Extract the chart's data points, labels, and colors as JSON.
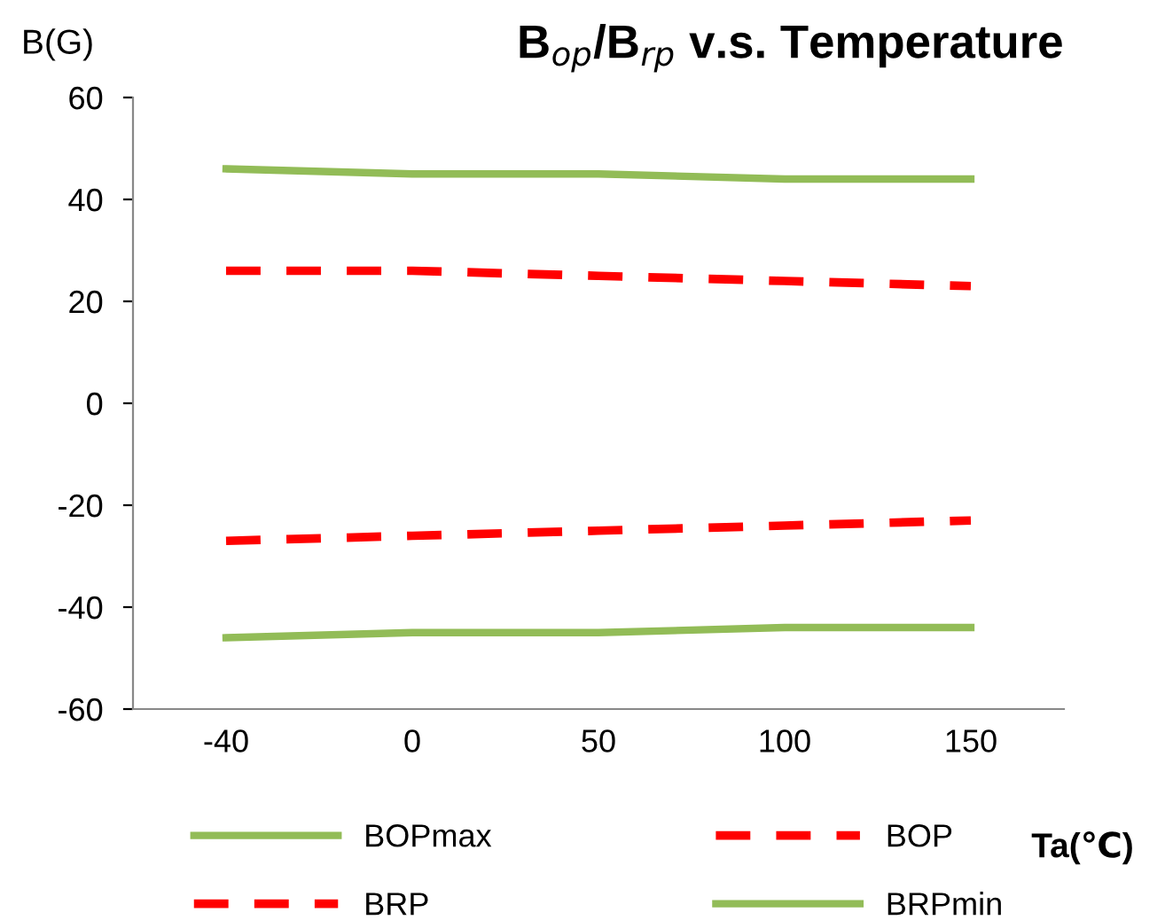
{
  "chart_data": {
    "type": "line",
    "title": "B$_{op}$/B$_{rp}$ v.s. Temperature",
    "ylabel": "B(G)",
    "xlabel": "Ta(℃)",
    "categories": [
      "-40",
      "0",
      "50",
      "100",
      "150"
    ],
    "series": [
      {
        "name": "BOPmax",
        "color": "#92bc57",
        "values": [
          46,
          45,
          45,
          44,
          44
        ],
        "line_style": "solid"
      },
      {
        "name": "BOP",
        "color": "#ff0000",
        "values": [
          26,
          26,
          25,
          24,
          23
        ],
        "line_style": "dashed"
      },
      {
        "name": "BRP",
        "color": "#ff0000",
        "values": [
          -27,
          -26,
          -25,
          -24,
          -23
        ],
        "line_style": "dashed"
      },
      {
        "name": "BRPmin",
        "color": "#92bc57",
        "values": [
          -46,
          -45,
          -45,
          -44,
          -44
        ],
        "line_style": "solid"
      }
    ],
    "ylim": [
      -60,
      60
    ],
    "yticks": [
      -60,
      -40,
      -20,
      0,
      20,
      40,
      60
    ],
    "grid": false,
    "legend": "bottom",
    "marker": "none"
  }
}
